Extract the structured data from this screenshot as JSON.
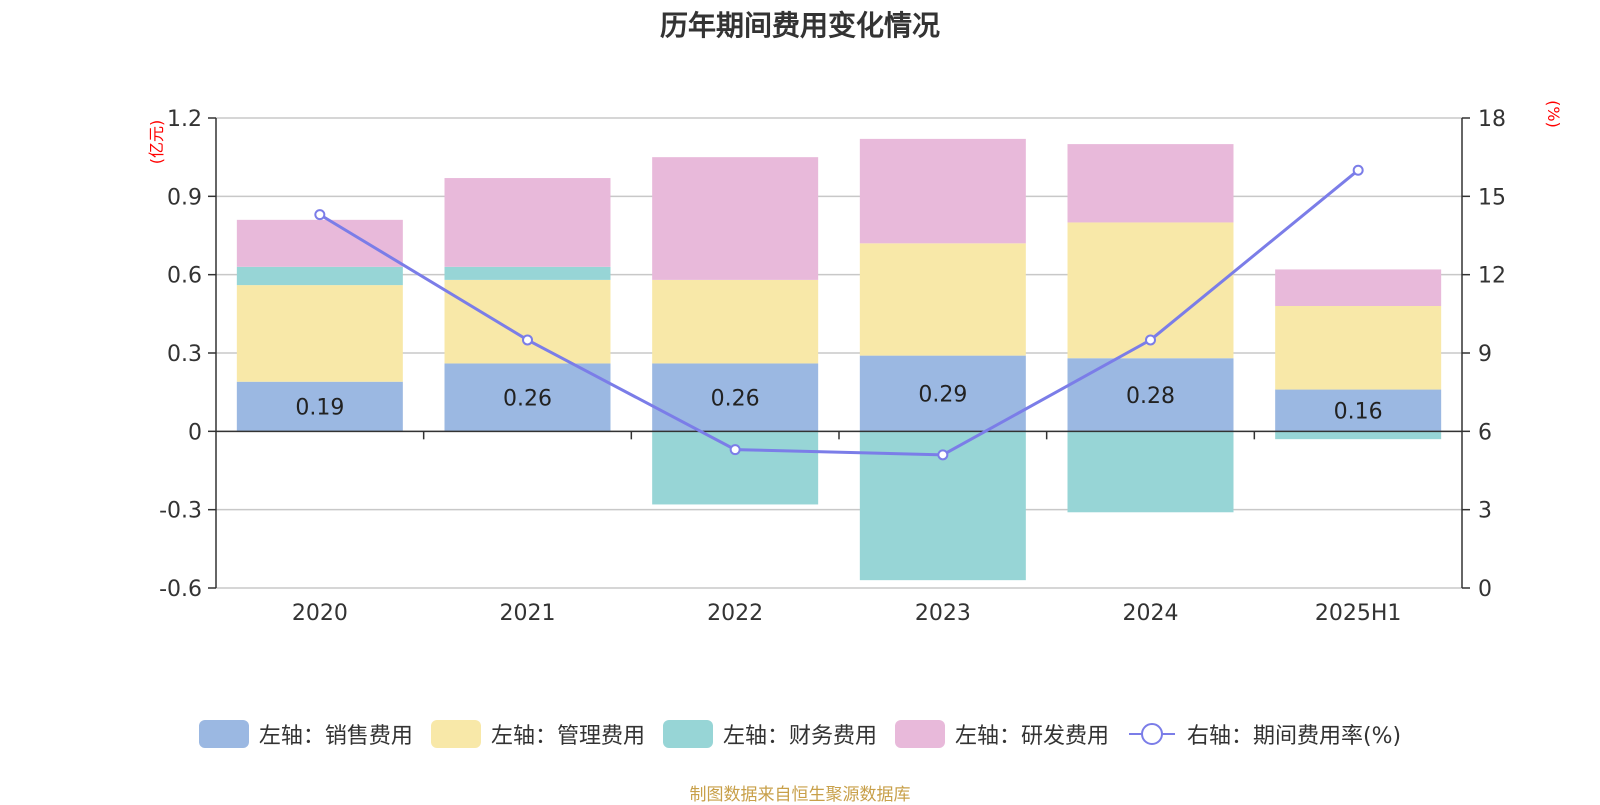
{
  "chart_data": {
    "type": "bar",
    "title": "历年期间费用变化情况",
    "categories": [
      "2020",
      "2021",
      "2022",
      "2023",
      "2024",
      "2025H1"
    ],
    "left_axis": {
      "unit_label": "(亿元)",
      "ylim": [
        -0.6,
        1.2
      ],
      "ticks": [
        "1.2",
        "0.9",
        "0.6",
        "0.3",
        "0",
        "-0.3",
        "-0.6"
      ]
    },
    "right_axis": {
      "unit_label": "(%)",
      "ylim": [
        0,
        18
      ],
      "ticks": [
        "18",
        "15",
        "12",
        "9",
        "6",
        "3",
        "0"
      ]
    },
    "grid": true,
    "legend_position": "bottom",
    "series": [
      {
        "name": "左轴：销售费用",
        "color": "#9bb8e2",
        "values": [
          0.19,
          0.26,
          0.26,
          0.29,
          0.28,
          0.16
        ],
        "data_labels": [
          "0.19",
          "0.26",
          "0.26",
          "0.29",
          "0.28",
          "0.16"
        ]
      },
      {
        "name": "左轴：管理费用",
        "color": "#f8e8a8",
        "values": [
          0.37,
          0.32,
          0.32,
          0.43,
          0.52,
          0.32
        ]
      },
      {
        "name": "左轴：财务费用",
        "color": "#97d5d6",
        "values": [
          0.07,
          0.05,
          -0.28,
          -0.57,
          -0.31,
          -0.03
        ]
      },
      {
        "name": "左轴：研发费用",
        "color": "#e8b9da",
        "values": [
          0.18,
          0.34,
          0.47,
          0.4,
          0.3,
          0.14
        ]
      },
      {
        "name": "右轴：期间费用率(%)",
        "color": "#7b7de8",
        "axis": "right",
        "values": [
          14.3,
          9.5,
          5.3,
          5.1,
          9.5,
          16.0
        ]
      }
    ]
  },
  "source_note": "制图数据来自恒生聚源数据库"
}
